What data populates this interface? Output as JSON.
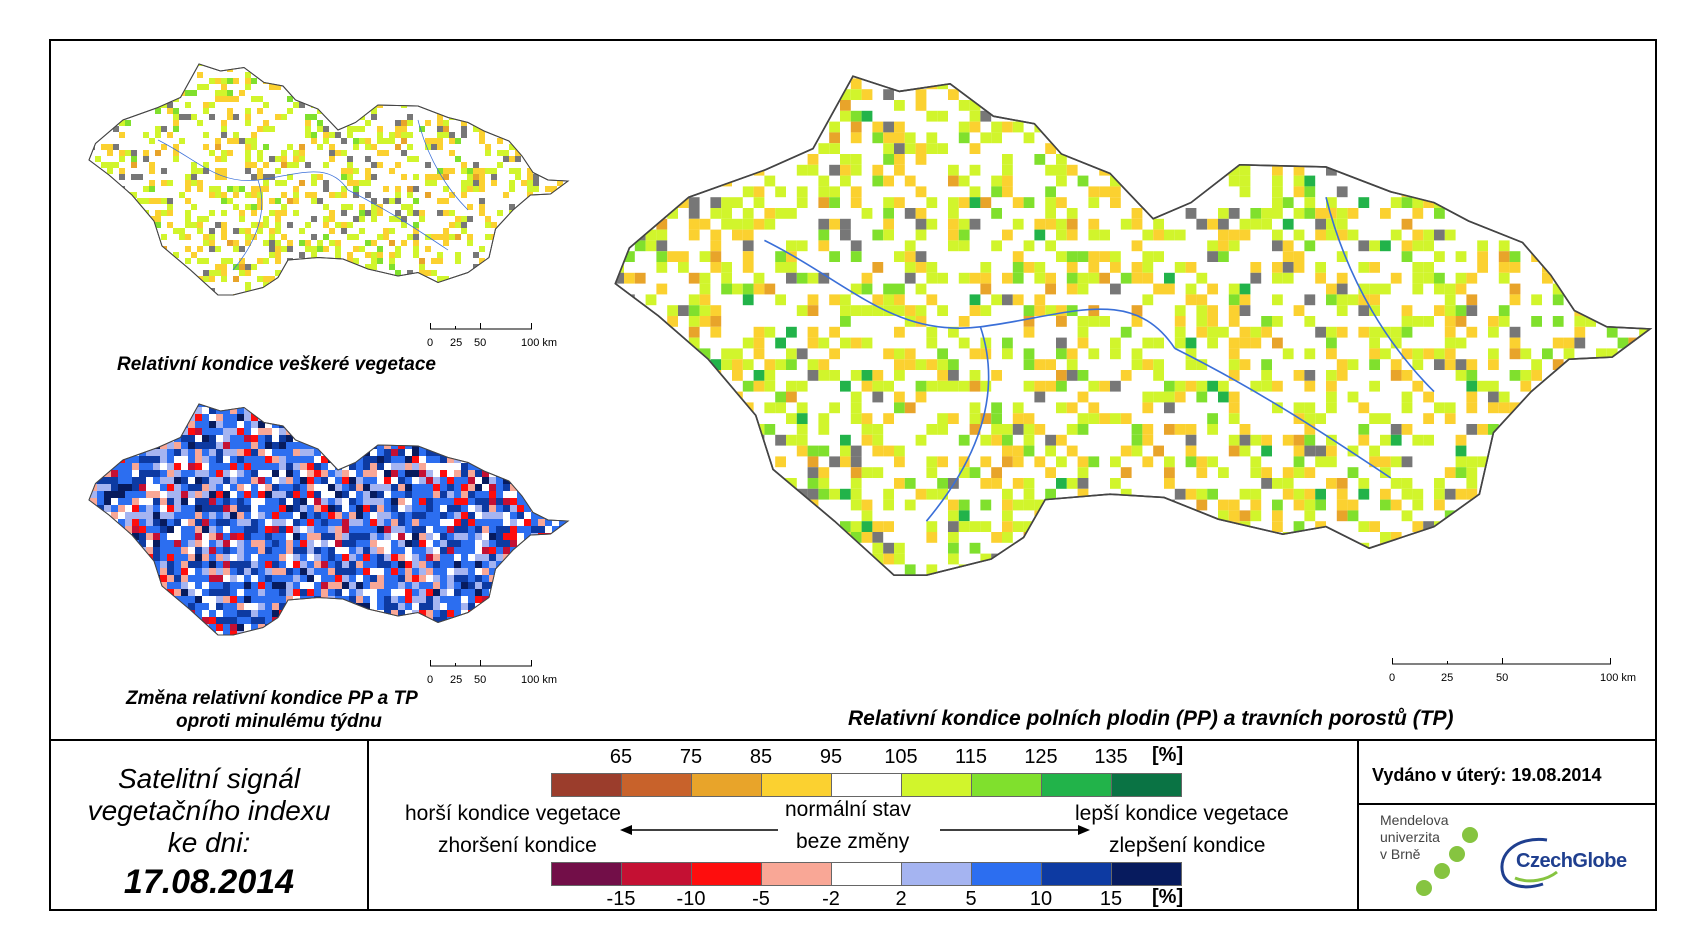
{
  "maps": {
    "main": {
      "title": "Relativní kondice polních plodin (PP) a travních porostů (TP)"
    },
    "top_small": {
      "title": "Relativní kondice veškeré vegetace"
    },
    "bottom_small": {
      "title_line1": "Změna relativní kondice PP a TP",
      "title_line2": "oproti minulému týdnu"
    }
  },
  "scalebar": {
    "labels": [
      "0",
      "25",
      "50",
      "100 km"
    ]
  },
  "info": {
    "line1": "Satelitní signál",
    "line2": "vegetačního indexu",
    "line3": "ke dni:",
    "date": "17.08.2014",
    "issued": "Vydáno v úterý: 19.08.2014"
  },
  "legend": {
    "condition": {
      "ticks": [
        "65",
        "75",
        "85",
        "95",
        "105",
        "115",
        "125",
        "135"
      ],
      "unit": "[%]",
      "colors": [
        "#9b3d2c",
        "#c8622b",
        "#e8a42a",
        "#fbd130",
        "#ffffff",
        "#d1f52c",
        "#80e02d",
        "#22b34a",
        "#0a7344"
      ]
    },
    "change": {
      "ticks": [
        "-15",
        "-10",
        "-5",
        "-2",
        "2",
        "5",
        "10",
        "15"
      ],
      "unit": "[%]",
      "colors": [
        "#720e48",
        "#c41033",
        "#fe0d0d",
        "#f9a796",
        "#ffffff",
        "#a5b4f1",
        "#2c6ef0",
        "#0d3aa2",
        "#071b5e"
      ]
    },
    "labels": {
      "worse_condition": "horší kondice vegetace",
      "worsening": "zhoršení kondice",
      "normal": "normální stav",
      "no_change": "beze změny",
      "better_condition": "lepší kondice vegetace",
      "improvement": "zlepšení kondice"
    }
  },
  "logos": {
    "mendel_line1": "Mendelova",
    "mendel_line2": "univerzita",
    "mendel_line3": "v Brně",
    "czechglobe": "CzechGlobe"
  }
}
